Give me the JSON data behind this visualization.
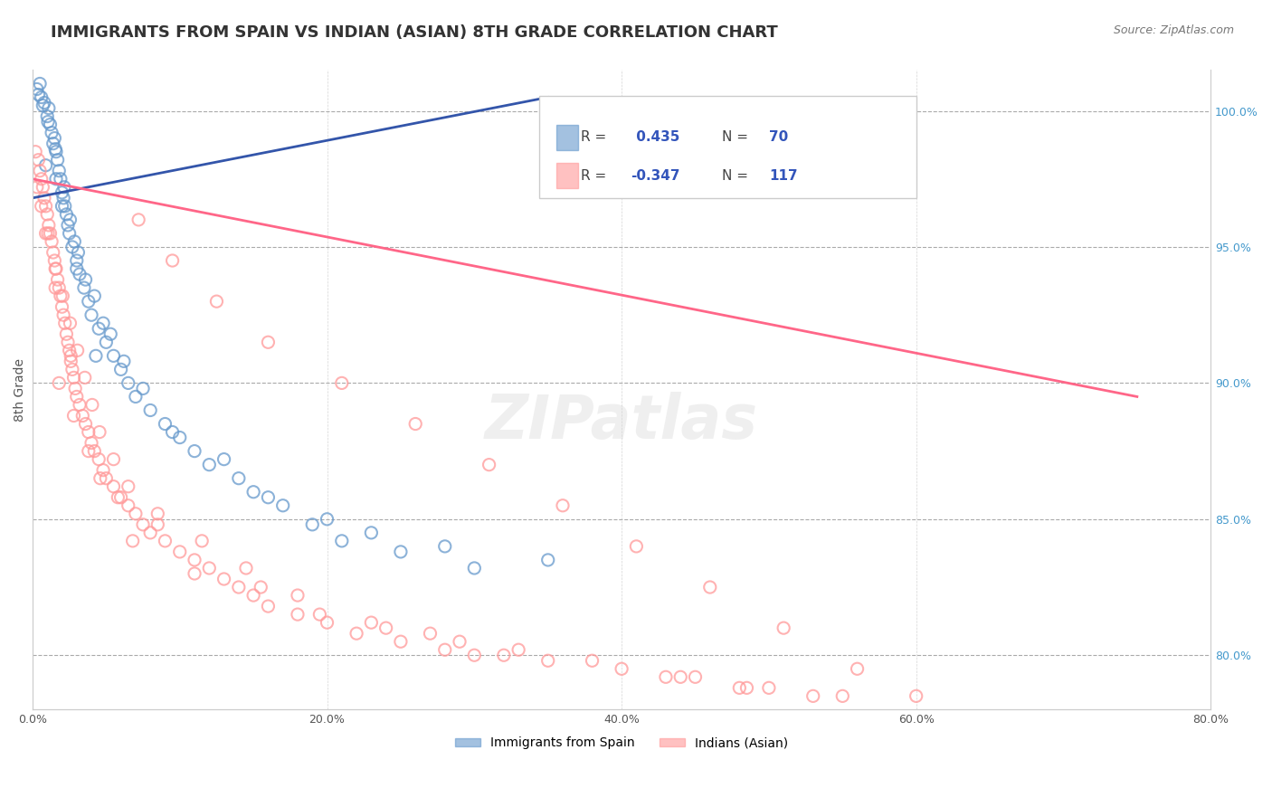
{
  "title": "IMMIGRANTS FROM SPAIN VS INDIAN (ASIAN) 8TH GRADE CORRELATION CHART",
  "source_text": "Source: ZipAtlas.com",
  "xlabel": "",
  "ylabel": "8th Grade",
  "watermark": "ZIPatlas",
  "xlim": [
    0.0,
    80.0
  ],
  "ylim": [
    78.0,
    101.5
  ],
  "x_ticks": [
    0.0,
    20.0,
    40.0,
    60.0,
    80.0
  ],
  "x_tick_labels": [
    "0.0%",
    "20.0%",
    "40.0%",
    "60.0%",
    "80.0%"
  ],
  "y_ticks": [
    80.0,
    85.0,
    90.0,
    95.0,
    100.0
  ],
  "y_tick_labels": [
    "80.0%",
    "85.0%",
    "90.0%",
    "95.0%",
    "100.0%"
  ],
  "blue_R": 0.435,
  "blue_N": 70,
  "pink_R": -0.347,
  "pink_N": 117,
  "blue_color": "#6699CC",
  "pink_color": "#FF9999",
  "blue_line_color": "#3355AA",
  "pink_line_color": "#FF6688",
  "legend_label_blue": "Immigrants from Spain",
  "legend_label_pink": "Indians (Asian)",
  "blue_scatter_x": [
    0.3,
    0.5,
    0.6,
    0.8,
    1.0,
    1.1,
    1.2,
    1.3,
    1.4,
    1.5,
    1.6,
    1.7,
    1.8,
    1.9,
    2.0,
    2.1,
    2.2,
    2.3,
    2.4,
    2.5,
    2.7,
    3.0,
    3.2,
    3.5,
    3.8,
    4.0,
    4.5,
    5.0,
    5.5,
    6.0,
    6.5,
    7.0,
    8.0,
    9.0,
    10.0,
    11.0,
    12.0,
    14.0,
    15.0,
    17.0,
    20.0,
    23.0,
    28.0,
    35.0,
    0.4,
    0.7,
    1.05,
    1.55,
    2.15,
    2.55,
    2.85,
    3.1,
    3.6,
    4.2,
    4.8,
    5.3,
    6.2,
    7.5,
    9.5,
    13.0,
    16.0,
    19.0,
    21.0,
    25.0,
    30.0,
    4.3,
    2.0,
    3.0,
    0.9,
    1.6
  ],
  "blue_scatter_y": [
    100.8,
    101.0,
    100.5,
    100.3,
    99.8,
    100.1,
    99.5,
    99.2,
    98.8,
    99.0,
    98.5,
    98.2,
    97.8,
    97.5,
    97.0,
    96.8,
    96.5,
    96.2,
    95.8,
    95.5,
    95.0,
    94.5,
    94.0,
    93.5,
    93.0,
    92.5,
    92.0,
    91.5,
    91.0,
    90.5,
    90.0,
    89.5,
    89.0,
    88.5,
    88.0,
    87.5,
    87.0,
    86.5,
    86.0,
    85.5,
    85.0,
    84.5,
    84.0,
    83.5,
    100.6,
    100.2,
    99.6,
    98.6,
    97.2,
    96.0,
    95.2,
    94.8,
    93.8,
    93.2,
    92.2,
    91.8,
    90.8,
    89.8,
    88.2,
    87.2,
    85.8,
    84.8,
    84.2,
    83.8,
    83.2,
    91.0,
    96.5,
    94.2,
    98.0,
    97.5
  ],
  "pink_scatter_x": [
    0.2,
    0.4,
    0.5,
    0.6,
    0.7,
    0.8,
    0.9,
    1.0,
    1.1,
    1.2,
    1.3,
    1.4,
    1.5,
    1.6,
    1.7,
    1.8,
    1.9,
    2.0,
    2.1,
    2.2,
    2.3,
    2.4,
    2.5,
    2.6,
    2.7,
    2.8,
    2.9,
    3.0,
    3.2,
    3.4,
    3.6,
    3.8,
    4.0,
    4.2,
    4.5,
    4.8,
    5.0,
    5.5,
    6.0,
    6.5,
    7.0,
    7.5,
    8.0,
    9.0,
    10.0,
    11.0,
    12.0,
    13.0,
    14.0,
    15.0,
    16.0,
    18.0,
    20.0,
    22.0,
    25.0,
    28.0,
    30.0,
    35.0,
    40.0,
    45.0,
    50.0,
    55.0,
    0.3,
    0.6,
    1.05,
    1.55,
    2.05,
    2.55,
    3.05,
    3.55,
    4.05,
    4.55,
    5.5,
    6.5,
    8.5,
    11.5,
    14.5,
    18.0,
    23.0,
    27.0,
    33.0,
    38.0,
    43.0,
    48.0,
    53.0,
    7.2,
    9.5,
    12.5,
    16.0,
    21.0,
    26.0,
    31.0,
    36.0,
    41.0,
    46.0,
    51.0,
    56.0,
    60.0,
    5.8,
    3.8,
    2.8,
    1.8,
    0.9,
    8.5,
    15.5,
    24.0,
    32.0,
    4.6,
    2.6,
    1.55,
    6.8,
    11.0,
    19.5,
    29.0,
    44.0,
    48.5
  ],
  "pink_scatter_y": [
    98.5,
    98.2,
    97.8,
    97.5,
    97.2,
    96.8,
    96.5,
    96.2,
    95.8,
    95.5,
    95.2,
    94.8,
    94.5,
    94.2,
    93.8,
    93.5,
    93.2,
    92.8,
    92.5,
    92.2,
    91.8,
    91.5,
    91.2,
    90.8,
    90.5,
    90.2,
    89.8,
    89.5,
    89.2,
    88.8,
    88.5,
    88.2,
    87.8,
    87.5,
    87.2,
    86.8,
    86.5,
    86.2,
    85.8,
    85.5,
    85.2,
    84.8,
    84.5,
    84.2,
    83.8,
    83.5,
    83.2,
    82.8,
    82.5,
    82.2,
    81.8,
    81.5,
    81.2,
    80.8,
    80.5,
    80.2,
    80.0,
    79.8,
    79.5,
    79.2,
    78.8,
    78.5,
    97.2,
    96.5,
    95.5,
    94.2,
    93.2,
    92.2,
    91.2,
    90.2,
    89.2,
    88.2,
    87.2,
    86.2,
    85.2,
    84.2,
    83.2,
    82.2,
    81.2,
    80.8,
    80.2,
    79.8,
    79.2,
    78.8,
    78.5,
    96.0,
    94.5,
    93.0,
    91.5,
    90.0,
    88.5,
    87.0,
    85.5,
    84.0,
    82.5,
    81.0,
    79.5,
    78.5,
    85.8,
    87.5,
    88.8,
    90.0,
    95.5,
    84.8,
    82.5,
    81.0,
    80.0,
    86.5,
    91.0,
    93.5,
    84.2,
    83.0,
    81.5,
    80.5,
    79.2,
    78.8
  ],
  "blue_trendline_x": [
    0.0,
    35.0
  ],
  "blue_trendline_y": [
    96.8,
    100.5
  ],
  "pink_trendline_x": [
    0.0,
    75.0
  ],
  "pink_trendline_y": [
    97.5,
    89.5
  ],
  "grid_color": "#AAAAAA",
  "background_color": "#FFFFFF",
  "title_fontsize": 13,
  "axis_fontsize": 10,
  "tick_fontsize": 9,
  "legend_fontsize": 11,
  "r_value_color": "#3355BB",
  "n_value_color": "#3355BB"
}
